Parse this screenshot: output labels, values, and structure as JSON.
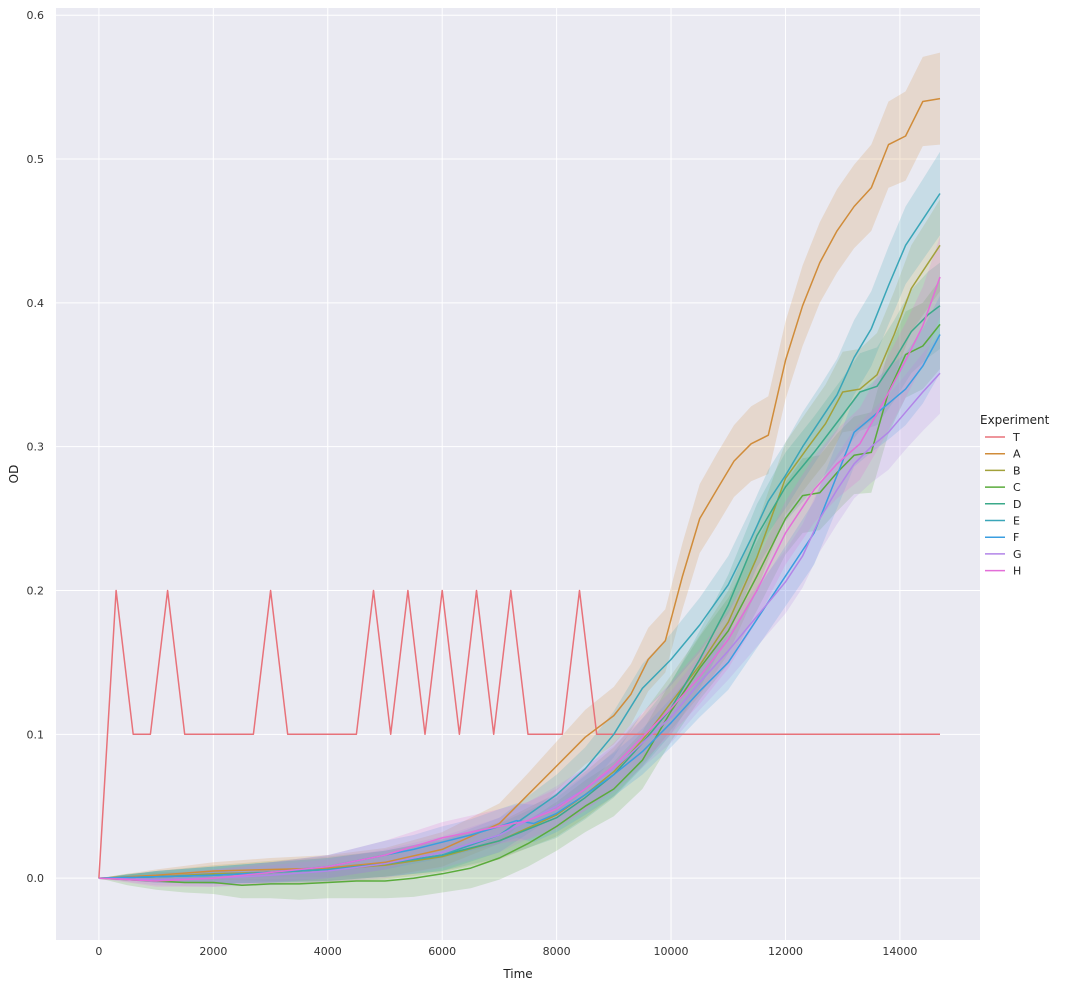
{
  "chart_data": {
    "type": "line",
    "title": "",
    "xlabel": "Time",
    "ylabel": "OD",
    "xlim": [
      -750,
      15400
    ],
    "ylim": [
      -0.043,
      0.605
    ],
    "xticks": [
      0,
      2000,
      4000,
      6000,
      8000,
      10000,
      12000,
      14000
    ],
    "yticks": [
      0.0,
      0.1,
      0.2,
      0.3,
      0.4,
      0.5,
      0.6
    ],
    "grid": true,
    "legend": {
      "title": "Experiment",
      "placement": "right"
    },
    "series": [
      {
        "name": "T",
        "color": "#e8727a",
        "band": false,
        "x": [
          0,
          300,
          600,
          900,
          1200,
          1500,
          1800,
          2100,
          2400,
          2700,
          3000,
          3300,
          3600,
          3900,
          4200,
          4500,
          4800,
          5100,
          5400,
          5700,
          6000,
          6300,
          6600,
          6900,
          7200,
          7500,
          7800,
          8100,
          8400,
          8700,
          9000,
          9600,
          10200,
          10800,
          11400,
          12000,
          12600,
          13200,
          13800,
          14400,
          14700
        ],
        "y": [
          0.0,
          0.2,
          0.1,
          0.1,
          0.2,
          0.1,
          0.1,
          0.1,
          0.1,
          0.1,
          0.2,
          0.1,
          0.1,
          0.1,
          0.1,
          0.1,
          0.2,
          0.1,
          0.2,
          0.1,
          0.2,
          0.1,
          0.2,
          0.1,
          0.2,
          0.1,
          0.1,
          0.1,
          0.2,
          0.1,
          0.1,
          0.1,
          0.1,
          0.1,
          0.1,
          0.1,
          0.1,
          0.1,
          0.1,
          0.1,
          0.1
        ]
      },
      {
        "name": "A",
        "color": "#d08c3a",
        "band": true,
        "x": [
          0,
          1000,
          2000,
          3000,
          4000,
          5000,
          6000,
          7000,
          7500,
          8000,
          8500,
          9000,
          9300,
          9600,
          9900,
          10200,
          10500,
          10800,
          11100,
          11400,
          11700,
          12000,
          12300,
          12600,
          12900,
          13200,
          13500,
          13800,
          14100,
          14400,
          14700
        ],
        "y": [
          0.0,
          0.002,
          0.005,
          0.006,
          0.007,
          0.011,
          0.02,
          0.038,
          0.058,
          0.078,
          0.098,
          0.113,
          0.128,
          0.152,
          0.165,
          0.21,
          0.25,
          0.27,
          0.29,
          0.302,
          0.308,
          0.36,
          0.398,
          0.428,
          0.45,
          0.467,
          0.48,
          0.51,
          0.516,
          0.54,
          0.542
        ],
        "band_width": [
          0,
          0.004,
          0.006,
          0.008,
          0.009,
          0.01,
          0.012,
          0.014,
          0.015,
          0.017,
          0.019,
          0.02,
          0.021,
          0.022,
          0.022,
          0.023,
          0.024,
          0.025,
          0.025,
          0.026,
          0.027,
          0.027,
          0.028,
          0.028,
          0.029,
          0.029,
          0.03,
          0.03,
          0.031,
          0.031,
          0.032
        ]
      },
      {
        "name": "B",
        "color": "#a2a13a",
        "band": true,
        "x": [
          0,
          1000,
          2000,
          3000,
          4000,
          5000,
          6000,
          7000,
          8000,
          8500,
          9000,
          9500,
          10000,
          10500,
          11000,
          11500,
          12000,
          12400,
          12700,
          13000,
          13300,
          13600,
          13900,
          14200,
          14500,
          14700
        ],
        "y": [
          0.0,
          0.001,
          0.003,
          0.004,
          0.006,
          0.009,
          0.015,
          0.026,
          0.044,
          0.058,
          0.074,
          0.096,
          0.122,
          0.148,
          0.178,
          0.223,
          0.278,
          0.3,
          0.316,
          0.338,
          0.34,
          0.35,
          0.378,
          0.41,
          0.428,
          0.44
        ],
        "band_width": [
          0,
          0.004,
          0.006,
          0.008,
          0.009,
          0.01,
          0.011,
          0.013,
          0.015,
          0.016,
          0.017,
          0.018,
          0.019,
          0.021,
          0.022,
          0.023,
          0.025,
          0.026,
          0.027,
          0.028,
          0.028,
          0.029,
          0.03,
          0.03,
          0.031,
          0.032
        ]
      },
      {
        "name": "C",
        "color": "#5aab3b",
        "band": true,
        "x": [
          0,
          500,
          1000,
          1500,
          2000,
          2500,
          3000,
          3500,
          4000,
          4500,
          5000,
          5500,
          6000,
          6500,
          7000,
          7500,
          8000,
          8500,
          9000,
          9500,
          10000,
          10500,
          11000,
          11500,
          12000,
          12300,
          12600,
          12900,
          13200,
          13500,
          13800,
          14100,
          14400,
          14700
        ],
        "y": [
          0.0,
          -0.001,
          -0.002,
          -0.003,
          -0.003,
          -0.005,
          -0.004,
          -0.004,
          -0.003,
          -0.002,
          -0.002,
          0.0,
          0.003,
          0.007,
          0.014,
          0.024,
          0.036,
          0.05,
          0.062,
          0.082,
          0.116,
          0.146,
          0.172,
          0.21,
          0.25,
          0.266,
          0.268,
          0.282,
          0.294,
          0.296,
          0.338,
          0.364,
          0.37,
          0.385
        ],
        "band_width": [
          0,
          0.004,
          0.006,
          0.007,
          0.008,
          0.009,
          0.01,
          0.011,
          0.011,
          0.012,
          0.012,
          0.013,
          0.013,
          0.014,
          0.015,
          0.016,
          0.017,
          0.018,
          0.019,
          0.02,
          0.021,
          0.022,
          0.023,
          0.024,
          0.025,
          0.026,
          0.026,
          0.027,
          0.027,
          0.028,
          0.029,
          0.03,
          0.03,
          0.031
        ]
      },
      {
        "name": "D",
        "color": "#3ba98a",
        "band": true,
        "x": [
          0,
          1000,
          2000,
          3000,
          4000,
          5000,
          6000,
          7000,
          8000,
          8500,
          9000,
          9500,
          10000,
          10500,
          11000,
          11500,
          12000,
          12500,
          13000,
          13300,
          13600,
          13900,
          14200,
          14500,
          14700
        ],
        "y": [
          0.0,
          0.001,
          0.002,
          0.004,
          0.006,
          0.01,
          0.016,
          0.026,
          0.042,
          0.056,
          0.072,
          0.094,
          0.118,
          0.152,
          0.19,
          0.238,
          0.272,
          0.296,
          0.322,
          0.338,
          0.342,
          0.36,
          0.38,
          0.392,
          0.398
        ],
        "band_width": [
          0,
          0.004,
          0.006,
          0.007,
          0.008,
          0.009,
          0.011,
          0.012,
          0.014,
          0.015,
          0.016,
          0.017,
          0.018,
          0.02,
          0.021,
          0.022,
          0.024,
          0.025,
          0.026,
          0.027,
          0.027,
          0.028,
          0.029,
          0.03,
          0.03
        ]
      },
      {
        "name": "E",
        "color": "#3aa6b8",
        "band": true,
        "x": [
          0,
          1000,
          2000,
          3000,
          4000,
          5000,
          6000,
          7000,
          7500,
          8000,
          8500,
          9000,
          9500,
          10000,
          10500,
          11000,
          11400,
          11700,
          12000,
          12300,
          12600,
          12900,
          13200,
          13500,
          13800,
          14100,
          14400,
          14700
        ],
        "y": [
          0.0,
          0.001,
          0.002,
          0.004,
          0.006,
          0.01,
          0.016,
          0.03,
          0.044,
          0.058,
          0.076,
          0.1,
          0.132,
          0.152,
          0.176,
          0.204,
          0.236,
          0.262,
          0.28,
          0.3,
          0.318,
          0.336,
          0.362,
          0.382,
          0.412,
          0.44,
          0.458,
          0.476
        ],
        "band_width": [
          0,
          0.004,
          0.006,
          0.007,
          0.008,
          0.009,
          0.011,
          0.012,
          0.013,
          0.014,
          0.015,
          0.016,
          0.017,
          0.018,
          0.019,
          0.02,
          0.021,
          0.022,
          0.023,
          0.024,
          0.024,
          0.025,
          0.026,
          0.026,
          0.027,
          0.027,
          0.028,
          0.029
        ]
      },
      {
        "name": "F",
        "color": "#3a9ee0",
        "band": true,
        "x": [
          0,
          1000,
          2000,
          3000,
          4000,
          4500,
          5000,
          5500,
          6000,
          6500,
          7000,
          7300,
          7600,
          8000,
          8500,
          9000,
          9500,
          10000,
          10500,
          11000,
          11500,
          12000,
          12500,
          12900,
          13200,
          13500,
          13800,
          14100,
          14400,
          14700
        ],
        "y": [
          0.0,
          0.001,
          0.002,
          0.004,
          0.008,
          0.012,
          0.016,
          0.02,
          0.025,
          0.03,
          0.036,
          0.04,
          0.038,
          0.045,
          0.058,
          0.072,
          0.088,
          0.108,
          0.13,
          0.15,
          0.18,
          0.21,
          0.24,
          0.28,
          0.31,
          0.32,
          0.33,
          0.34,
          0.356,
          0.378
        ],
        "band_width": [
          0,
          0.004,
          0.006,
          0.007,
          0.008,
          0.009,
          0.01,
          0.01,
          0.011,
          0.011,
          0.012,
          0.012,
          0.013,
          0.013,
          0.014,
          0.015,
          0.016,
          0.017,
          0.018,
          0.019,
          0.02,
          0.021,
          0.022,
          0.023,
          0.024,
          0.024,
          0.025,
          0.025,
          0.026,
          0.027
        ]
      },
      {
        "name": "G",
        "color": "#b285e8",
        "band": true,
        "x": [
          0,
          1000,
          2000,
          3000,
          4000,
          5000,
          6000,
          7000,
          7500,
          8000,
          8500,
          9000,
          9500,
          10000,
          10500,
          11000,
          11500,
          12000,
          12300,
          12600,
          12900,
          13200,
          13500,
          13800,
          14100,
          14400,
          14700
        ],
        "y": [
          0.0,
          -0.001,
          0.0,
          0.002,
          0.005,
          0.01,
          0.018,
          0.03,
          0.04,
          0.05,
          0.062,
          0.076,
          0.094,
          0.112,
          0.136,
          0.158,
          0.182,
          0.206,
          0.224,
          0.25,
          0.27,
          0.288,
          0.3,
          0.31,
          0.324,
          0.338,
          0.351
        ],
        "band_width": [
          0,
          0.004,
          0.006,
          0.007,
          0.008,
          0.01,
          0.011,
          0.012,
          0.013,
          0.014,
          0.015,
          0.016,
          0.017,
          0.018,
          0.019,
          0.02,
          0.021,
          0.022,
          0.022,
          0.023,
          0.024,
          0.024,
          0.025,
          0.026,
          0.026,
          0.027,
          0.028
        ]
      },
      {
        "name": "H",
        "color": "#e36ed8",
        "band": true,
        "x": [
          0,
          1000,
          2000,
          3000,
          4000,
          5000,
          6000,
          7000,
          7500,
          8000,
          8500,
          9000,
          9500,
          10000,
          10500,
          11000,
          11500,
          12000,
          12500,
          12900,
          13300,
          13700,
          14100,
          14400,
          14700
        ],
        "y": [
          0.0,
          -0.002,
          0.0,
          0.004,
          0.008,
          0.016,
          0.028,
          0.036,
          0.04,
          0.048,
          0.062,
          0.078,
          0.098,
          0.118,
          0.14,
          0.166,
          0.2,
          0.24,
          0.27,
          0.288,
          0.302,
          0.33,
          0.36,
          0.384,
          0.418
        ],
        "band_width": [
          0,
          0.004,
          0.006,
          0.007,
          0.008,
          0.01,
          0.011,
          0.012,
          0.013,
          0.014,
          0.015,
          0.016,
          0.017,
          0.018,
          0.019,
          0.02,
          0.021,
          0.022,
          0.023,
          0.024,
          0.025,
          0.026,
          0.026,
          0.027,
          0.028
        ]
      }
    ]
  }
}
